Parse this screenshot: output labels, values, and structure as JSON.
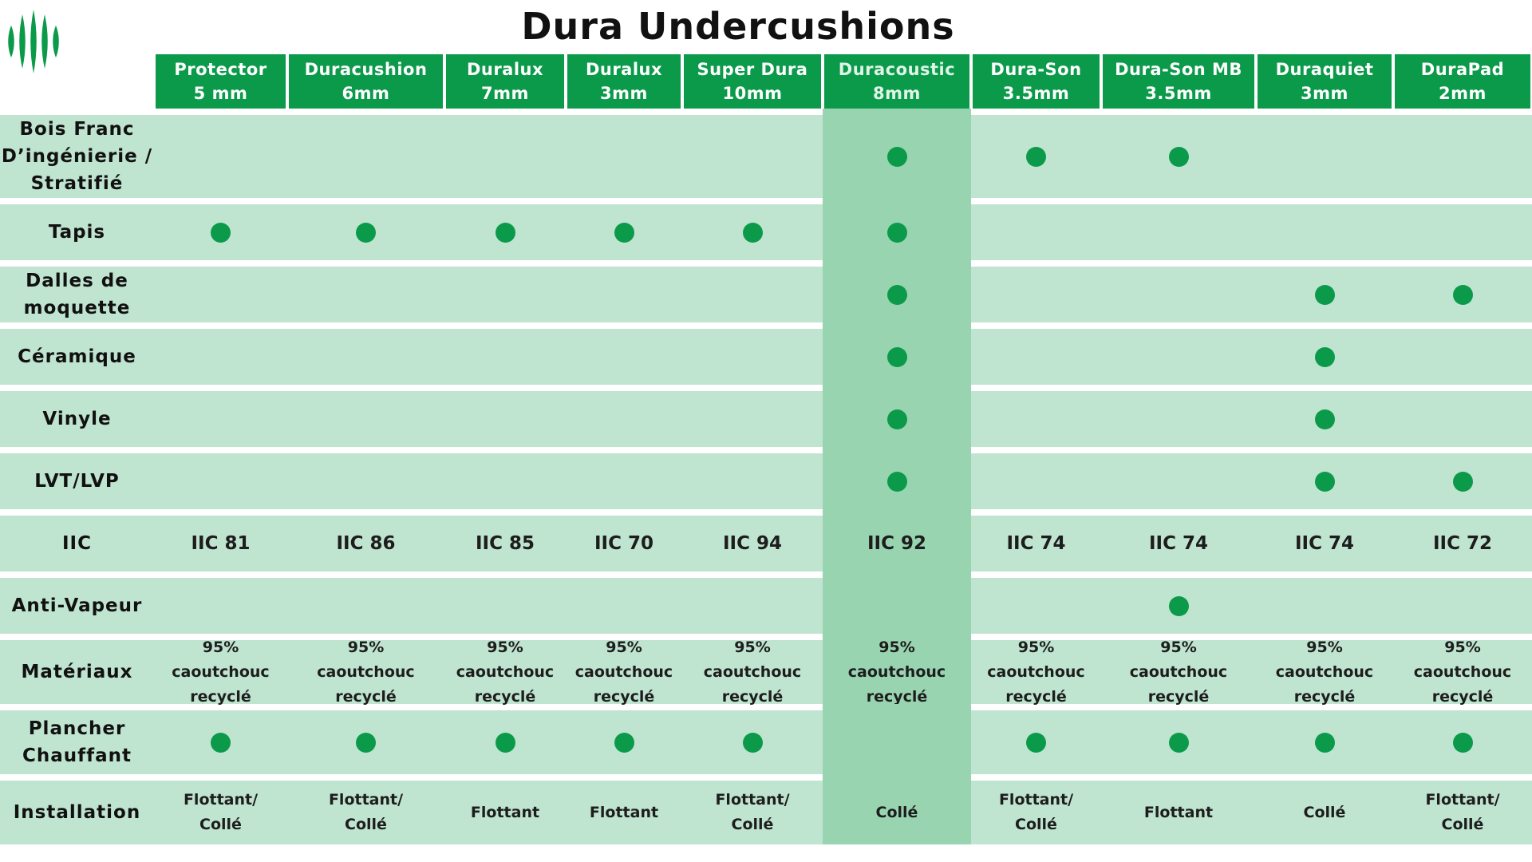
{
  "title": "Dura Undercushions",
  "logo": {
    "icon": "vertical-stripes-logo",
    "color": "#0b9a4a"
  },
  "colors": {
    "header_green": "#0b9a4a",
    "row_bg": "#bfe4d0",
    "highlight_col": "#99d4b1"
  },
  "products": [
    {
      "name": "Protector\n5 mm"
    },
    {
      "name": "Duracushion\n6mm"
    },
    {
      "name": "Duralux\n7mm"
    },
    {
      "name": "Duralux\n3mm"
    },
    {
      "name": "Super Dura\n10mm"
    },
    {
      "name": "Duracoustic\n8mm"
    },
    {
      "name": "Dura-Son\n3.5mm"
    },
    {
      "name": "Dura-Son MB\n3.5mm"
    },
    {
      "name": "Duraquiet\n3mm"
    },
    {
      "name": "DuraPad\n2mm"
    }
  ],
  "highlighted_product": "Duracoustic 8mm",
  "rows": [
    {
      "label": "Bois Franc\nD’ingénierie /\nStratifié",
      "type": "dots",
      "cells": [
        false,
        false,
        false,
        false,
        false,
        true,
        true,
        true,
        false,
        false
      ]
    },
    {
      "label": "Tapis",
      "type": "dots",
      "cells": [
        true,
        true,
        true,
        true,
        true,
        true,
        false,
        false,
        false,
        false
      ]
    },
    {
      "label": "Dalles de\nmoquette",
      "type": "dots",
      "cells": [
        false,
        false,
        false,
        false,
        false,
        true,
        false,
        false,
        true,
        true
      ]
    },
    {
      "label": "Céramique",
      "type": "dots",
      "cells": [
        false,
        false,
        false,
        false,
        false,
        true,
        false,
        false,
        true,
        false
      ]
    },
    {
      "label": "Vinyle",
      "type": "dots",
      "cells": [
        false,
        false,
        false,
        false,
        false,
        true,
        false,
        false,
        true,
        false
      ]
    },
    {
      "label": "LVT/LVP",
      "type": "dots",
      "cells": [
        false,
        false,
        false,
        false,
        false,
        true,
        false,
        false,
        true,
        true
      ]
    },
    {
      "label": "IIC",
      "type": "text",
      "cells": [
        "IIC 81",
        "IIC 86",
        "IIC 85",
        "IIC 70",
        "IIC 94",
        "IIC 92",
        "IIC 74",
        "IIC 74",
        "IIC 74",
        "IIC 72"
      ]
    },
    {
      "label": "Anti-Vapeur",
      "type": "dots",
      "cells": [
        false,
        false,
        false,
        false,
        false,
        false,
        false,
        true,
        false,
        false
      ]
    },
    {
      "label": "Matériaux",
      "type": "small",
      "cells": [
        "95%\ncaoutchouc\nrecyclé",
        "95%\ncaoutchouc\nrecyclé",
        "95%\ncaoutchouc\nrecyclé",
        "95%\ncaoutchouc\nrecyclé",
        "95%\ncaoutchouc\nrecyclé",
        "95%\ncaoutchouc\nrecyclé",
        "95%\ncaoutchouc\nrecyclé",
        "95%\ncaoutchouc\nrecyclé",
        "95%\ncaoutchouc\nrecyclé",
        "95%\ncaoutchouc\nrecyclé"
      ]
    },
    {
      "label": "Plancher\nChauffant",
      "type": "dots",
      "cells": [
        true,
        true,
        true,
        true,
        true,
        false,
        true,
        true,
        true,
        true
      ]
    },
    {
      "label": "Installation",
      "type": "small",
      "cells": [
        "Flottant/\nCollé",
        "Flottant/\nCollé",
        "Flottant",
        "Flottant",
        "Flottant/\nCollé",
        "Collé",
        "Flottant/\nCollé",
        "Flottant",
        "Collé",
        "Flottant/\nCollé"
      ]
    }
  ]
}
